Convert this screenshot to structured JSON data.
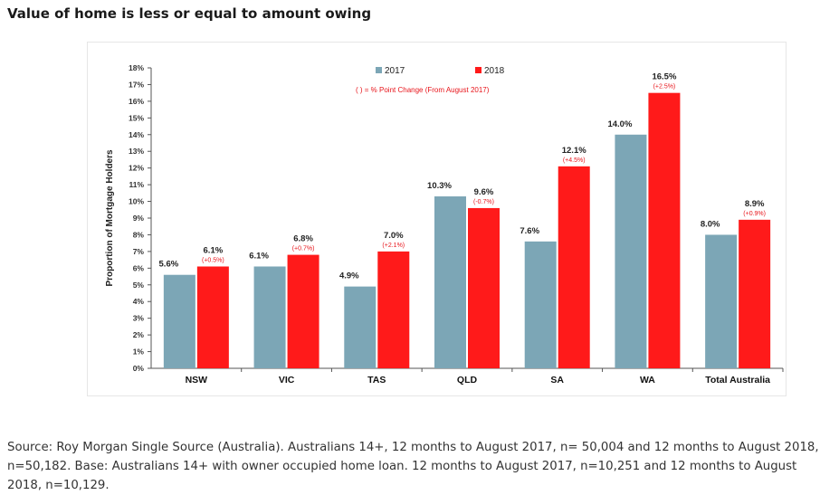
{
  "page": {
    "title": "Value of home is less or equal to amount owing",
    "source_note": "Source: Roy Morgan Single Source (Australia). Australians 14+, 12 months to August 2017, n= 50,004 and 12 months to August 2018, n=50,182. Base: Australians 14+ with owner occupied home loan. 12 months to August 2017, n=10,251 and 12 months to August 2018, n=10,129."
  },
  "chart_data": {
    "type": "bar",
    "title": "Value of home is less or equal to amount owing",
    "xlabel": "",
    "ylabel": "Proportion of Mortgage Holders",
    "ylim": [
      0,
      18
    ],
    "yticks": [
      "0%",
      "1%",
      "2%",
      "3%",
      "4%",
      "5%",
      "6%",
      "7%",
      "8%",
      "9%",
      "10%",
      "11%",
      "12%",
      "13%",
      "14%",
      "15%",
      "16%",
      "17%",
      "18%"
    ],
    "categories": [
      "NSW",
      "VIC",
      "TAS",
      "QLD",
      "SA",
      "WA",
      "Total Australia"
    ],
    "series": [
      {
        "name": "2017",
        "color": "#7ca6b6",
        "values": [
          5.6,
          6.1,
          4.9,
          10.3,
          7.6,
          14.0,
          8.0
        ],
        "labels": [
          "5.6%",
          "6.1%",
          "4.9%",
          "10.3%",
          "7.6%",
          "14.0%",
          "8.0%"
        ]
      },
      {
        "name": "2018",
        "color": "#ff1a1a",
        "values": [
          6.1,
          6.8,
          7.0,
          9.6,
          12.1,
          16.5,
          8.9
        ],
        "labels": [
          "6.1%",
          "6.8%",
          "7.0%",
          "9.6%",
          "12.1%",
          "16.5%",
          "8.9%"
        ],
        "changes": [
          "(+0.5%)",
          "(+0.7%)",
          "(+2.1%)",
          "(-0.7%)",
          "(+4.5%)",
          "(+2.5%)",
          "(+0.9%)"
        ]
      }
    ],
    "annotation": "( ) = % Point Change (From August 2017)",
    "annotation_color": "#e8141a",
    "legend": "top-center",
    "grid": false
  }
}
